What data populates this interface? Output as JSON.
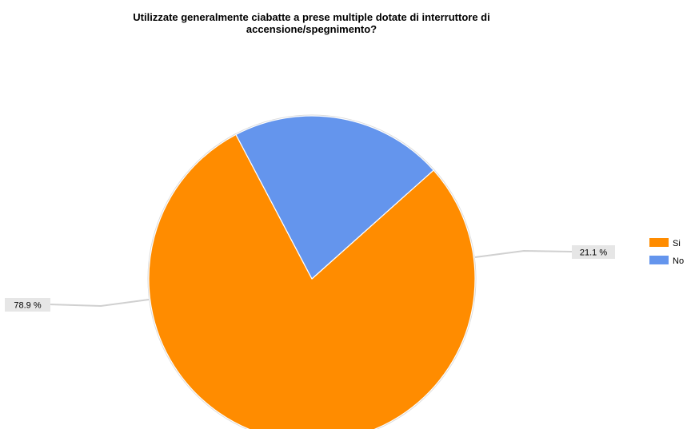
{
  "chart_data": {
    "type": "pie",
    "title_lines": [
      "Utilizzate generalmente ciabatte a prese multiple dotate di interruttore di",
      "accensione/spegnimento?"
    ],
    "categories": [
      "Si",
      "No"
    ],
    "values": [
      78.9,
      21.1
    ],
    "data_labels": [
      "78.9 %",
      "21.1 %"
    ],
    "colors": [
      "#FF8C00",
      "#6495ED"
    ],
    "legend_position": "right"
  }
}
